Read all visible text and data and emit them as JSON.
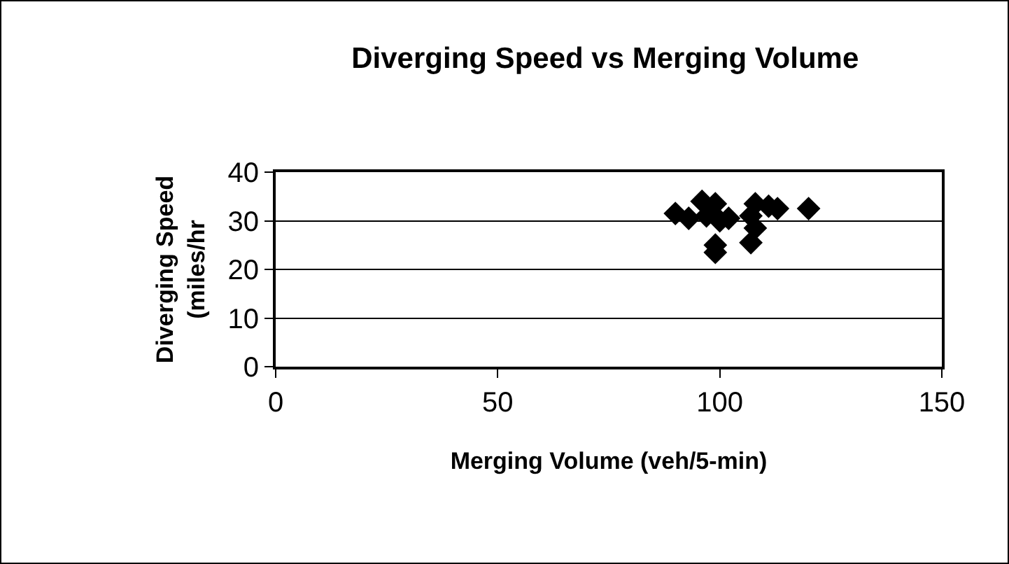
{
  "chart_data": {
    "type": "scatter",
    "title": "Diverging Speed vs Merging Volume",
    "xlabel": "Merging Volume (veh/5-min)",
    "ylabel": "Diverging Speed (miles/hr",
    "x": [
      90,
      93,
      96,
      97,
      99,
      100,
      102,
      99,
      99,
      107,
      107,
      108,
      108,
      111,
      113,
      120
    ],
    "values": [
      31.5,
      30.5,
      34,
      31,
      33.5,
      30,
      30.5,
      25,
      23.5,
      25.5,
      31,
      28.5,
      33.5,
      33,
      32.5,
      32.5
    ],
    "color": "#000000",
    "marker": "diamond",
    "xlim": [
      0,
      150
    ],
    "xticks": [
      0,
      50,
      100,
      150
    ],
    "ylim": [
      0,
      40
    ],
    "yticks": [
      0,
      10,
      20,
      30,
      40
    ],
    "grid": "y"
  }
}
